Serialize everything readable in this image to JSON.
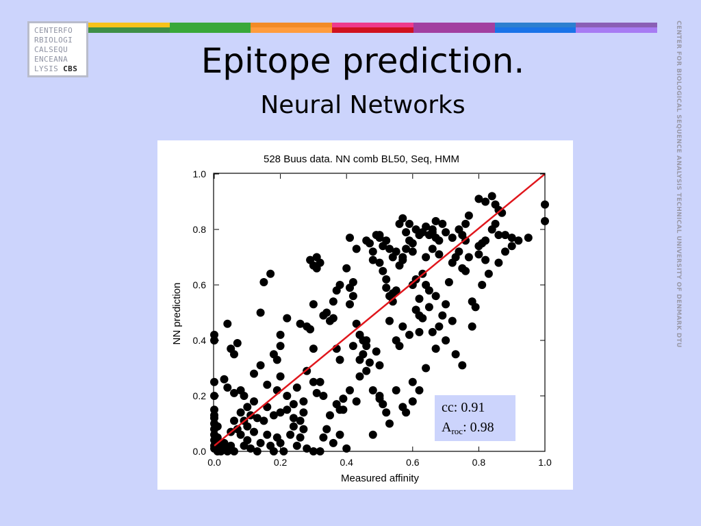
{
  "logo": {
    "lines": [
      "CENTERFO",
      "RBIOLOGI",
      "CALSEQU",
      "ENCEANA",
      "LYSIS"
    ],
    "strong": "CBS"
  },
  "side_text": "CENTER FOR BIOLOGICAL SEQUENCE ANALYSIS TECHNICAL UNIVERSITY OF DENMARK DTU",
  "color_bar": [
    [
      "#f7c21a",
      "#3e8f47"
    ],
    [
      "#39a839",
      "#39a839"
    ],
    [
      "#f28b26",
      "#ff9c3d"
    ],
    [
      "#ee3a8c",
      "#d0121f"
    ],
    [
      "#a23fa0",
      "#a23fa0"
    ],
    [
      "#2d7fcf",
      "#1a73e8"
    ],
    [
      "#8a5fb5",
      "#a77bf3"
    ]
  ],
  "slide": {
    "title": "Epitope prediction.",
    "subtitle": "Neural Networks"
  },
  "stats": {
    "cc_label": "cc:",
    "cc_value": "0.91",
    "aroc_main": "A",
    "aroc_sub": "roc",
    "aroc_value": ": 0.98"
  },
  "chart_data": {
    "type": "scatter",
    "title": "528 Buus data. NN comb BL50, Seq, HMM",
    "xlabel": "Measured affinity",
    "ylabel": "NN prediction",
    "xlim": [
      0,
      1
    ],
    "ylim": [
      0,
      1
    ],
    "xticks": [
      "0.0",
      "0.2",
      "0.4",
      "0.6",
      "0.8",
      "1.0"
    ],
    "yticks": [
      "0.0",
      "0.2",
      "0.4",
      "0.6",
      "0.8",
      "1.0"
    ],
    "fit_line": {
      "x": [
        0,
        1
      ],
      "y": [
        0.02,
        1.0
      ],
      "color": "#e0161c"
    },
    "point_color": "#000000",
    "points": [
      [
        0.0,
        0.42
      ],
      [
        0.0,
        0.4
      ],
      [
        0.0,
        0.25
      ],
      [
        0.0,
        0.2
      ],
      [
        0.0,
        0.15
      ],
      [
        0.0,
        0.13
      ],
      [
        0.0,
        0.12
      ],
      [
        0.0,
        0.1
      ],
      [
        0.0,
        0.08
      ],
      [
        0.0,
        0.06
      ],
      [
        0.0,
        0.04
      ],
      [
        0.0,
        0.02
      ],
      [
        0.0,
        0.01
      ],
      [
        0.01,
        0.09
      ],
      [
        0.01,
        0.05
      ],
      [
        0.01,
        0.03
      ],
      [
        0.01,
        0.0
      ],
      [
        0.02,
        0.02
      ],
      [
        0.02,
        0.0
      ],
      [
        0.03,
        0.01
      ],
      [
        0.03,
        0.03
      ],
      [
        0.04,
        0.0
      ],
      [
        0.05,
        0.02
      ],
      [
        0.06,
        0.0
      ],
      [
        0.03,
        0.26
      ],
      [
        0.04,
        0.46
      ],
      [
        0.04,
        0.23
      ],
      [
        0.05,
        0.37
      ],
      [
        0.06,
        0.35
      ],
      [
        0.07,
        0.39
      ],
      [
        0.06,
        0.21
      ],
      [
        0.08,
        0.22
      ],
      [
        0.09,
        0.2
      ],
      [
        0.1,
        0.16
      ],
      [
        0.07,
        0.08
      ],
      [
        0.08,
        0.06
      ],
      [
        0.09,
        0.02
      ],
      [
        0.1,
        0.04
      ],
      [
        0.11,
        0.01
      ],
      [
        0.12,
        0.07
      ],
      [
        0.13,
        0.0
      ],
      [
        0.14,
        0.03
      ],
      [
        0.15,
        0.11
      ],
      [
        0.16,
        0.06
      ],
      [
        0.17,
        0.02
      ],
      [
        0.18,
        0.0
      ],
      [
        0.19,
        0.05
      ],
      [
        0.2,
        0.03
      ],
      [
        0.21,
        0.0
      ],
      [
        0.12,
        0.28
      ],
      [
        0.14,
        0.31
      ],
      [
        0.16,
        0.24
      ],
      [
        0.14,
        0.5
      ],
      [
        0.15,
        0.61
      ],
      [
        0.17,
        0.64
      ],
      [
        0.18,
        0.35
      ],
      [
        0.19,
        0.22
      ],
      [
        0.2,
        0.14
      ],
      [
        0.22,
        0.2
      ],
      [
        0.24,
        0.17
      ],
      [
        0.23,
        0.06
      ],
      [
        0.25,
        0.02
      ],
      [
        0.26,
        0.05
      ],
      [
        0.28,
        0.01
      ],
      [
        0.3,
        0.0
      ],
      [
        0.32,
        0.0
      ],
      [
        0.2,
        0.27
      ],
      [
        0.19,
        0.33
      ],
      [
        0.2,
        0.38
      ],
      [
        0.2,
        0.42
      ],
      [
        0.22,
        0.48
      ],
      [
        0.24,
        0.09
      ],
      [
        0.26,
        0.11
      ],
      [
        0.27,
        0.14
      ],
      [
        0.28,
        0.29
      ],
      [
        0.27,
        0.18
      ],
      [
        0.25,
        0.23
      ],
      [
        0.26,
        0.46
      ],
      [
        0.28,
        0.45
      ],
      [
        0.29,
        0.44
      ],
      [
        0.3,
        0.37
      ],
      [
        0.3,
        0.53
      ],
      [
        0.29,
        0.69
      ],
      [
        0.3,
        0.67
      ],
      [
        0.31,
        0.66
      ],
      [
        0.31,
        0.7
      ],
      [
        0.32,
        0.68
      ],
      [
        0.33,
        0.2
      ],
      [
        0.31,
        0.21
      ],
      [
        0.32,
        0.25
      ],
      [
        0.3,
        0.25
      ],
      [
        0.33,
        0.49
      ],
      [
        0.34,
        0.5
      ],
      [
        0.35,
        0.47
      ],
      [
        0.36,
        0.54
      ],
      [
        0.36,
        0.48
      ],
      [
        0.37,
        0.58
      ],
      [
        0.37,
        0.37
      ],
      [
        0.38,
        0.33
      ],
      [
        0.39,
        0.15
      ],
      [
        0.37,
        0.17
      ],
      [
        0.38,
        0.15
      ],
      [
        0.38,
        0.6
      ],
      [
        0.4,
        0.66
      ],
      [
        0.41,
        0.59
      ],
      [
        0.42,
        0.56
      ],
      [
        0.42,
        0.61
      ],
      [
        0.41,
        0.53
      ],
      [
        0.43,
        0.46
      ],
      [
        0.44,
        0.42
      ],
      [
        0.42,
        0.38
      ],
      [
        0.4,
        0.01
      ],
      [
        0.39,
        0.19
      ],
      [
        0.41,
        0.77
      ],
      [
        0.43,
        0.73
      ],
      [
        0.44,
        0.42
      ],
      [
        0.45,
        0.4
      ],
      [
        0.46,
        0.38
      ],
      [
        0.46,
        0.76
      ],
      [
        0.47,
        0.75
      ],
      [
        0.48,
        0.69
      ],
      [
        0.48,
        0.72
      ],
      [
        0.49,
        0.78
      ],
      [
        0.5,
        0.68
      ],
      [
        0.5,
        0.77
      ],
      [
        0.51,
        0.65
      ],
      [
        0.52,
        0.59
      ],
      [
        0.52,
        0.62
      ],
      [
        0.53,
        0.47
      ],
      [
        0.53,
        0.56
      ],
      [
        0.54,
        0.57
      ],
      [
        0.54,
        0.54
      ],
      [
        0.55,
        0.58
      ],
      [
        0.56,
        0.82
      ],
      [
        0.57,
        0.84
      ],
      [
        0.57,
        0.7
      ],
      [
        0.58,
        0.73
      ],
      [
        0.59,
        0.76
      ],
      [
        0.6,
        0.6
      ],
      [
        0.6,
        0.72
      ],
      [
        0.61,
        0.62
      ],
      [
        0.61,
        0.51
      ],
      [
        0.62,
        0.49
      ],
      [
        0.62,
        0.55
      ],
      [
        0.62,
        0.43
      ],
      [
        0.63,
        0.64
      ],
      [
        0.64,
        0.7
      ],
      [
        0.64,
        0.6
      ],
      [
        0.65,
        0.58
      ],
      [
        0.65,
        0.78
      ],
      [
        0.66,
        0.73
      ],
      [
        0.66,
        0.8
      ],
      [
        0.67,
        0.77
      ],
      [
        0.68,
        0.71
      ],
      [
        0.68,
        0.76
      ],
      [
        0.69,
        0.49
      ],
      [
        0.7,
        0.53
      ],
      [
        0.71,
        0.61
      ],
      [
        0.72,
        0.68
      ],
      [
        0.73,
        0.7
      ],
      [
        0.74,
        0.72
      ],
      [
        0.75,
        0.66
      ],
      [
        0.76,
        0.65
      ],
      [
        0.77,
        0.7
      ],
      [
        0.78,
        0.54
      ],
      [
        0.8,
        0.71
      ],
      [
        0.8,
        0.74
      ],
      [
        0.81,
        0.75
      ],
      [
        0.82,
        0.76
      ],
      [
        0.82,
        0.69
      ],
      [
        0.84,
        0.8
      ],
      [
        0.85,
        0.82
      ],
      [
        0.86,
        0.78
      ],
      [
        0.88,
        0.78
      ],
      [
        0.9,
        0.77
      ],
      [
        0.95,
        0.77
      ],
      [
        1.0,
        0.83
      ],
      [
        1.0,
        0.89
      ],
      [
        0.8,
        0.91
      ],
      [
        0.82,
        0.9
      ],
      [
        0.84,
        0.92
      ],
      [
        0.85,
        0.89
      ],
      [
        0.86,
        0.87
      ],
      [
        0.87,
        0.86
      ],
      [
        0.74,
        0.8
      ],
      [
        0.75,
        0.78
      ],
      [
        0.76,
        0.76
      ],
      [
        0.76,
        0.82
      ],
      [
        0.77,
        0.85
      ],
      [
        0.72,
        0.77
      ],
      [
        0.7,
        0.79
      ],
      [
        0.69,
        0.82
      ],
      [
        0.67,
        0.83
      ],
      [
        0.66,
        0.79
      ],
      [
        0.64,
        0.81
      ],
      [
        0.63,
        0.79
      ],
      [
        0.62,
        0.78
      ],
      [
        0.61,
        0.8
      ],
      [
        0.6,
        0.75
      ],
      [
        0.59,
        0.82
      ],
      [
        0.58,
        0.79
      ],
      [
        0.57,
        0.69
      ],
      [
        0.56,
        0.67
      ],
      [
        0.55,
        0.72
      ],
      [
        0.54,
        0.7
      ],
      [
        0.53,
        0.73
      ],
      [
        0.52,
        0.76
      ],
      [
        0.51,
        0.74
      ],
      [
        0.5,
        0.78
      ],
      [
        0.45,
        0.35
      ],
      [
        0.44,
        0.33
      ],
      [
        0.46,
        0.4
      ],
      [
        0.47,
        0.32
      ],
      [
        0.49,
        0.36
      ],
      [
        0.5,
        0.31
      ],
      [
        0.48,
        0.22
      ],
      [
        0.5,
        0.2
      ],
      [
        0.5,
        0.19
      ],
      [
        0.51,
        0.17
      ],
      [
        0.52,
        0.14
      ],
      [
        0.55,
        0.22
      ],
      [
        0.57,
        0.16
      ],
      [
        0.48,
        0.06
      ],
      [
        0.53,
        0.1
      ],
      [
        0.58,
        0.14
      ],
      [
        0.6,
        0.18
      ],
      [
        0.62,
        0.22
      ],
      [
        0.55,
        0.4
      ],
      [
        0.57,
        0.45
      ],
      [
        0.59,
        0.42
      ],
      [
        0.63,
        0.48
      ],
      [
        0.65,
        0.52
      ],
      [
        0.67,
        0.56
      ],
      [
        0.68,
        0.45
      ],
      [
        0.66,
        0.43
      ],
      [
        0.75,
        0.31
      ],
      [
        0.56,
        0.38
      ],
      [
        0.6,
        0.25
      ],
      [
        0.64,
        0.3
      ],
      [
        0.67,
        0.37
      ],
      [
        0.7,
        0.4
      ],
      [
        0.72,
        0.47
      ],
      [
        0.73,
        0.35
      ],
      [
        0.78,
        0.45
      ],
      [
        0.79,
        0.52
      ],
      [
        0.81,
        0.6
      ],
      [
        0.83,
        0.64
      ],
      [
        0.86,
        0.68
      ],
      [
        0.88,
        0.72
      ],
      [
        0.9,
        0.74
      ],
      [
        0.92,
        0.76
      ],
      [
        0.44,
        0.27
      ],
      [
        0.46,
        0.29
      ],
      [
        0.43,
        0.18
      ],
      [
        0.41,
        0.22
      ],
      [
        0.35,
        0.13
      ],
      [
        0.34,
        0.08
      ],
      [
        0.33,
        0.05
      ],
      [
        0.36,
        0.03
      ],
      [
        0.38,
        0.06
      ],
      [
        0.27,
        0.08
      ],
      [
        0.24,
        0.12
      ],
      [
        0.22,
        0.15
      ],
      [
        0.18,
        0.13
      ],
      [
        0.16,
        0.16
      ],
      [
        0.13,
        0.12
      ],
      [
        0.11,
        0.13
      ],
      [
        0.1,
        0.09
      ],
      [
        0.12,
        0.18
      ],
      [
        0.08,
        0.14
      ],
      [
        0.09,
        0.11
      ],
      [
        0.06,
        0.11
      ],
      [
        0.05,
        0.07
      ]
    ]
  }
}
